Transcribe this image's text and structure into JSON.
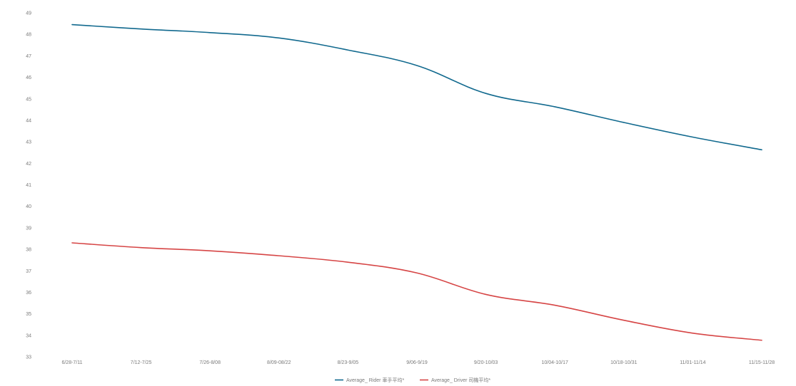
{
  "chart_data": {
    "type": "line",
    "title": "",
    "xlabel": "",
    "ylabel": "",
    "categories": [
      "6/28-7/11",
      "7/12-7/25",
      "7/26-8/08",
      "8/09-08/22",
      "8/23-9/05",
      "9/06-9/19",
      "9/20-10/03",
      "10/04-10/17",
      "10/18-10/31",
      "11/01-11/14",
      "11/15-11/28"
    ],
    "yticks": [
      "33",
      "34",
      "35",
      "36",
      "37",
      "38",
      "39",
      "40",
      "41",
      "42",
      "43",
      "44",
      "45",
      "46",
      "47",
      "48",
      "49"
    ],
    "ylim": [
      33,
      49
    ],
    "grid": false,
    "legend_position": "bottom",
    "series": [
      {
        "name": "Average_ Rider 車手平均*",
        "color": "#11698e",
        "values": [
          48.45,
          48.25,
          48.08,
          47.83,
          47.27,
          46.55,
          45.25,
          44.63,
          43.9,
          43.22,
          42.63
        ]
      },
      {
        "name": "Average_ Driver 司機平均*",
        "color": "#d64545",
        "values": [
          38.3,
          38.08,
          37.93,
          37.7,
          37.4,
          36.9,
          35.9,
          35.4,
          34.7,
          34.1,
          33.77
        ]
      }
    ]
  }
}
